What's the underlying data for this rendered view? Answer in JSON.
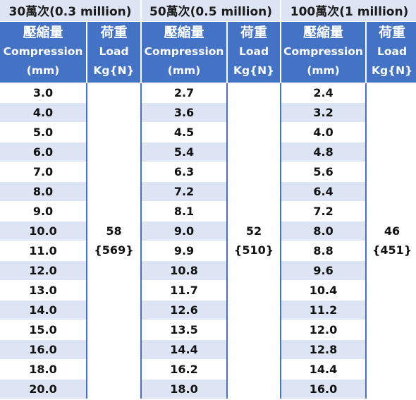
{
  "groups": [
    {
      "title": "30萬次(0.3 million)",
      "compression_header": [
        "壓縮量",
        "Compression",
        "(mm)"
      ],
      "load_header": [
        "荷重",
        "Load",
        "Kg{N}"
      ],
      "compression_values": [
        "3.0",
        "4.0",
        "5.0",
        "6.0",
        "7.0",
        "8.0",
        "9.0",
        "10.0",
        "11.0",
        "12.0",
        "13.0",
        "14.0",
        "15.0",
        "16.0",
        "18.0",
        "20.0"
      ],
      "load_value": [
        "58",
        "{569}"
      ]
    },
    {
      "title": "50萬次(0.5 million)",
      "compression_header": [
        "壓縮量",
        "Compression",
        "(mm)"
      ],
      "load_header": [
        "荷重",
        "Load",
        "Kg{N}"
      ],
      "compression_values": [
        "2.7",
        "3.6",
        "4.5",
        "5.4",
        "6.3",
        "7.2",
        "8.1",
        "9.0",
        "9.9",
        "10.8",
        "11.7",
        "12.6",
        "13.5",
        "14.4",
        "16.2",
        "18.0"
      ],
      "load_value": [
        "52",
        "{510}"
      ]
    },
    {
      "title": "100萬次(1 million)",
      "compression_header": [
        "壓縮量",
        "Compression",
        "(mm)"
      ],
      "load_header": [
        "荷重",
        "Load",
        "Kg{N}"
      ],
      "compression_values": [
        "2.4",
        "3.2",
        "4.0",
        "4.8",
        "5.6",
        "6.4",
        "7.2",
        "8.0",
        "8.8",
        "9.6",
        "10.4",
        "11.2",
        "12.0",
        "12.8",
        "14.4",
        "16.0"
      ],
      "load_value": [
        "46",
        "{451}"
      ]
    }
  ],
  "colors": {
    "header_bg": "#4472c4",
    "band_bg": "#dde4f3",
    "grid": "#4472c4"
  }
}
